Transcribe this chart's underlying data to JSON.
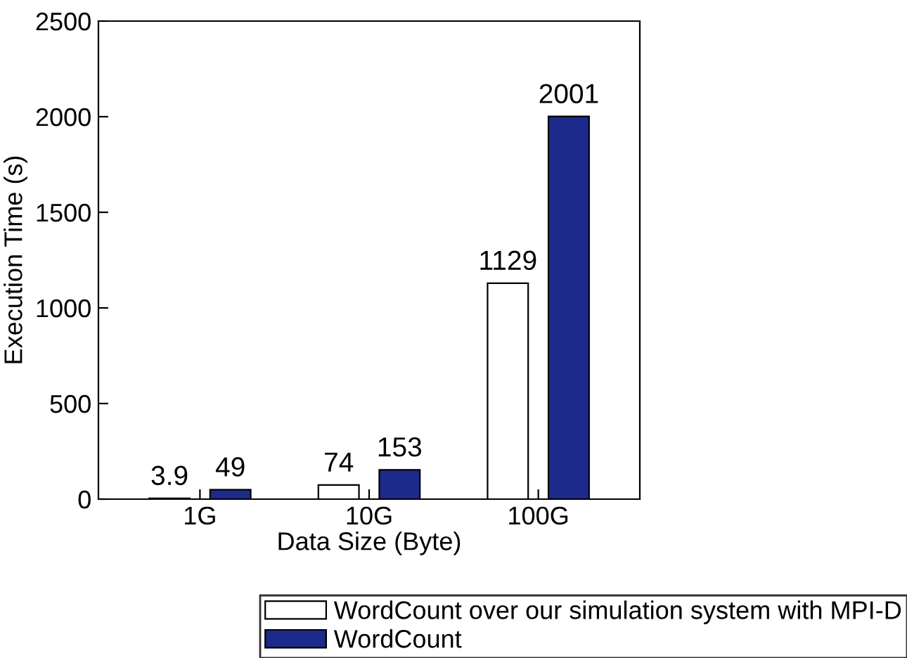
{
  "chart_data": {
    "type": "bar",
    "xlabel": "Data Size (Byte)",
    "ylabel": "Execution Time (s)",
    "categories": [
      "1G",
      "10G",
      "100G"
    ],
    "series": [
      {
        "name": "WordCount over our simulation system with MPI-D",
        "color": "#ffffff",
        "values": [
          3.9,
          74,
          1129
        ]
      },
      {
        "name": "WordCount",
        "color": "#1c2a8c",
        "values": [
          49,
          153,
          2001
        ]
      }
    ],
    "ylim": [
      0,
      2500
    ],
    "yticks": [
      0,
      500,
      1000,
      1500,
      2000,
      2500
    ],
    "data_labels": true,
    "legend": "bottom",
    "grid": false
  }
}
